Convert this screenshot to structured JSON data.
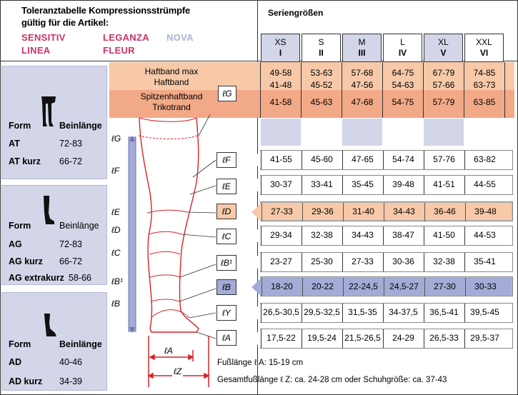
{
  "title": "Toleranztabelle Kompressionsstrümpfe",
  "subtitle": "gültig für die Artikel:",
  "articles": {
    "sensitiv": "SENSITIV",
    "leganza": "LEGANZA",
    "nova": "NOVA",
    "linea": "LINEA",
    "fleur": "FLEUR"
  },
  "series_title": "Seriengrößen",
  "sizes": [
    {
      "size": "XS",
      "roman": "I"
    },
    {
      "size": "S",
      "roman": "II"
    },
    {
      "size": "M",
      "roman": "III"
    },
    {
      "size": "L",
      "roman": "IV"
    },
    {
      "size": "XL",
      "roman": "V"
    },
    {
      "size": "XXL",
      "roman": "VI"
    }
  ],
  "left_panels": [
    {
      "form": "Form",
      "beinlaenge": "Beinlänge",
      "items": [
        [
          "AT",
          "72-83"
        ],
        [
          "AT kurz",
          "66-72"
        ]
      ]
    },
    {
      "form": "Form",
      "beinlaenge": "Beinlänge",
      "items": [
        [
          "AG",
          "72-83"
        ],
        [
          "AG kurz",
          "66-72"
        ],
        [
          "AG extrakurz",
          "58-66"
        ]
      ]
    },
    {
      "form": "Form",
      "beinlaenge": "Beinlänge",
      "items": [
        [
          "AD",
          "40-46"
        ],
        [
          "AD kurz",
          "34-39"
        ]
      ]
    }
  ],
  "haftband": {
    "labels": [
      "Haftband max",
      "Haftband",
      "Spitzenhaftband",
      "Trikotrand"
    ],
    "box": "ℓG",
    "row1": [
      "49-58",
      "53-63",
      "57-68",
      "64-75",
      "67-79",
      "74-85"
    ],
    "row2": [
      "41-48",
      "45-52",
      "47-56",
      "54-63",
      "57-66",
      "63-73"
    ],
    "row3": [
      "41-58",
      "45-63",
      "47-68",
      "54-75",
      "57-79",
      "63-85"
    ]
  },
  "rows": [
    {
      "label": "ℓF",
      "values": [
        "41-55",
        "45-60",
        "47-65",
        "54-74",
        "57-76",
        "63-82"
      ]
    },
    {
      "label": "ℓE",
      "values": [
        "30-37",
        "33-41",
        "35-45",
        "39-48",
        "41-51",
        "44-55"
      ]
    },
    {
      "label": "ℓD",
      "values": [
        "27-33",
        "29-36",
        "31-40",
        "34-43",
        "36-46",
        "39-48"
      ]
    },
    {
      "label": "ℓC",
      "values": [
        "29-34",
        "32-38",
        "34-43",
        "38-47",
        "41-50",
        "44-53"
      ]
    },
    {
      "label": "ℓB¹",
      "values": [
        "23-27",
        "25-30",
        "27-33",
        "30-36",
        "32-38",
        "35-41"
      ]
    },
    {
      "label": "ℓB",
      "values": [
        "18-20",
        "20-22",
        "22-24,5",
        "24,5-27",
        "27-30",
        "30-33"
      ]
    },
    {
      "label": "ℓY",
      "values": [
        "26,5-30,5",
        "29,5-32,5",
        "31,5-35",
        "34-37,5",
        "36,5-41",
        "39,5-45"
      ]
    },
    {
      "label": "ℓA",
      "values": [
        "17,5-22",
        "19,5-24",
        "21,5-26,5",
        "24-29",
        "26,5-33",
        "29,5-37"
      ]
    }
  ],
  "leg_labels": [
    "ℓG",
    "ℓF",
    "ℓE",
    "ℓD",
    "ℓC",
    "ℓB¹",
    "ℓB"
  ],
  "foot_a": "ℓA",
  "foot_z": "ℓZ",
  "note_a": "Fußlänge ℓ A: 15-19 cm",
  "note_z": "Gesamtfußlänge ℓ Z: ca. 24-28 cm oder Schuhgröße: ca. 37-43",
  "colors": {
    "peach": "#f7c9a8",
    "peach_dark": "#f2a987",
    "lavender": "#d3d5e8",
    "blue_row": "#a3abd6",
    "magenta": "#c8336a",
    "red": "#d9222a"
  }
}
